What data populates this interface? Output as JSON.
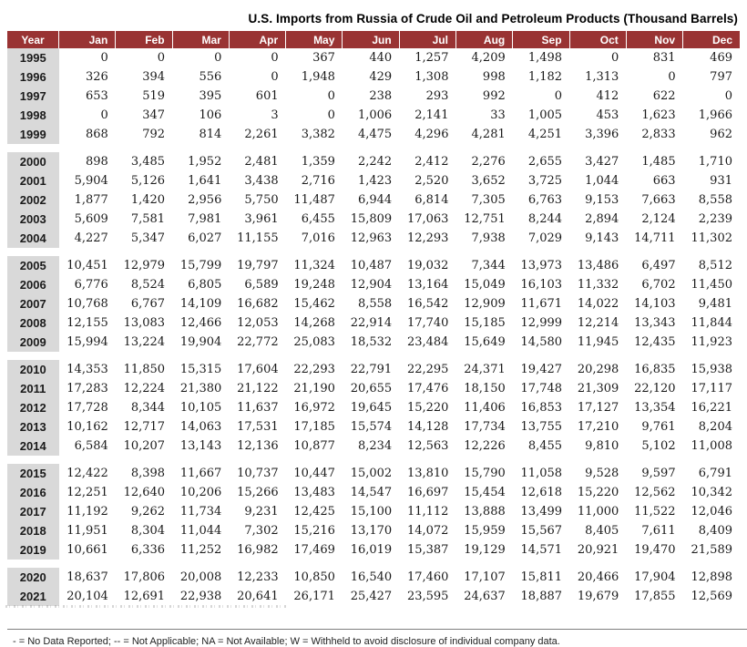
{
  "chart_data": {
    "type": "table",
    "title": "U.S. Imports from Russia of Crude Oil and Petroleum Products (Thousand Barrels)",
    "unit": "Thousand Barrels",
    "columns": [
      "Year",
      "Jan",
      "Feb",
      "Mar",
      "Apr",
      "May",
      "Jun",
      "Jul",
      "Aug",
      "Sep",
      "Oct",
      "Nov",
      "Dec"
    ],
    "row_groups": [
      {
        "rows": [
          {
            "year": "1995",
            "values": [
              "0",
              "0",
              "0",
              "0",
              "367",
              "440",
              "1,257",
              "4,209",
              "1,498",
              "0",
              "831",
              "469"
            ]
          },
          {
            "year": "1996",
            "values": [
              "326",
              "394",
              "556",
              "0",
              "1,948",
              "429",
              "1,308",
              "998",
              "1,182",
              "1,313",
              "0",
              "797"
            ]
          },
          {
            "year": "1997",
            "values": [
              "653",
              "519",
              "395",
              "601",
              "0",
              "238",
              "293",
              "992",
              "0",
              "412",
              "622",
              "0"
            ]
          },
          {
            "year": "1998",
            "values": [
              "0",
              "347",
              "106",
              "3",
              "0",
              "1,006",
              "2,141",
              "33",
              "1,005",
              "453",
              "1,623",
              "1,966"
            ]
          },
          {
            "year": "1999",
            "values": [
              "868",
              "792",
              "814",
              "2,261",
              "3,382",
              "4,475",
              "4,296",
              "4,281",
              "4,251",
              "3,396",
              "2,833",
              "962"
            ]
          }
        ]
      },
      {
        "rows": [
          {
            "year": "2000",
            "values": [
              "898",
              "3,485",
              "1,952",
              "2,481",
              "1,359",
              "2,242",
              "2,412",
              "2,276",
              "2,655",
              "3,427",
              "1,485",
              "1,710"
            ]
          },
          {
            "year": "2001",
            "values": [
              "5,904",
              "5,126",
              "1,641",
              "3,438",
              "2,716",
              "1,423",
              "2,520",
              "3,652",
              "3,725",
              "1,044",
              "663",
              "931"
            ]
          },
          {
            "year": "2002",
            "values": [
              "1,877",
              "1,420",
              "2,956",
              "5,750",
              "11,487",
              "6,944",
              "6,814",
              "7,305",
              "6,763",
              "9,153",
              "7,663",
              "8,558"
            ]
          },
          {
            "year": "2003",
            "values": [
              "5,609",
              "7,581",
              "7,981",
              "3,961",
              "6,455",
              "15,809",
              "17,063",
              "12,751",
              "8,244",
              "2,894",
              "2,124",
              "2,239"
            ]
          },
          {
            "year": "2004",
            "values": [
              "4,227",
              "5,347",
              "6,027",
              "11,155",
              "7,016",
              "12,963",
              "12,293",
              "7,938",
              "7,029",
              "9,143",
              "14,711",
              "11,302"
            ]
          }
        ]
      },
      {
        "rows": [
          {
            "year": "2005",
            "values": [
              "10,451",
              "12,979",
              "15,799",
              "19,797",
              "11,324",
              "10,487",
              "19,032",
              "7,344",
              "13,973",
              "13,486",
              "6,497",
              "8,512"
            ]
          },
          {
            "year": "2006",
            "values": [
              "6,776",
              "8,524",
              "6,805",
              "6,589",
              "19,248",
              "12,904",
              "13,164",
              "15,049",
              "16,103",
              "11,332",
              "6,702",
              "11,450"
            ]
          },
          {
            "year": "2007",
            "values": [
              "10,768",
              "6,767",
              "14,109",
              "16,682",
              "15,462",
              "8,558",
              "16,542",
              "12,909",
              "11,671",
              "14,022",
              "14,103",
              "9,481"
            ]
          },
          {
            "year": "2008",
            "values": [
              "12,155",
              "13,083",
              "12,466",
              "12,053",
              "14,268",
              "22,914",
              "17,740",
              "15,185",
              "12,999",
              "12,214",
              "13,343",
              "11,844"
            ]
          },
          {
            "year": "2009",
            "values": [
              "15,994",
              "13,224",
              "19,904",
              "22,772",
              "25,083",
              "18,532",
              "23,484",
              "15,649",
              "14,580",
              "11,945",
              "12,435",
              "11,923"
            ]
          }
        ]
      },
      {
        "rows": [
          {
            "year": "2010",
            "values": [
              "14,353",
              "11,850",
              "15,315",
              "17,604",
              "22,293",
              "22,791",
              "22,295",
              "24,371",
              "19,427",
              "20,298",
              "16,835",
              "15,938"
            ]
          },
          {
            "year": "2011",
            "values": [
              "17,283",
              "12,224",
              "21,380",
              "21,122",
              "21,190",
              "20,655",
              "17,476",
              "18,150",
              "17,748",
              "21,309",
              "22,120",
              "17,117"
            ]
          },
          {
            "year": "2012",
            "values": [
              "17,728",
              "8,344",
              "10,105",
              "11,637",
              "16,972",
              "19,645",
              "15,220",
              "11,406",
              "16,853",
              "17,127",
              "13,354",
              "16,221"
            ]
          },
          {
            "year": "2013",
            "values": [
              "10,162",
              "12,717",
              "14,063",
              "17,531",
              "17,185",
              "15,574",
              "14,128",
              "17,734",
              "13,755",
              "17,210",
              "9,761",
              "8,204"
            ]
          },
          {
            "year": "2014",
            "values": [
              "6,584",
              "10,207",
              "13,143",
              "12,136",
              "10,877",
              "8,234",
              "12,563",
              "12,226",
              "8,455",
              "9,810",
              "5,102",
              "11,008"
            ]
          }
        ]
      },
      {
        "rows": [
          {
            "year": "2015",
            "values": [
              "12,422",
              "8,398",
              "11,667",
              "10,737",
              "10,447",
              "15,002",
              "13,810",
              "15,790",
              "11,058",
              "9,528",
              "9,597",
              "6,791"
            ]
          },
          {
            "year": "2016",
            "values": [
              "12,251",
              "12,640",
              "10,206",
              "15,266",
              "13,483",
              "14,547",
              "16,697",
              "15,454",
              "12,618",
              "15,220",
              "12,562",
              "10,342"
            ]
          },
          {
            "year": "2017",
            "values": [
              "11,192",
              "9,262",
              "11,734",
              "9,231",
              "12,425",
              "15,100",
              "11,112",
              "13,888",
              "13,499",
              "11,000",
              "11,522",
              "12,046"
            ]
          },
          {
            "year": "2018",
            "values": [
              "11,951",
              "8,304",
              "11,044",
              "7,302",
              "15,216",
              "13,170",
              "14,072",
              "15,959",
              "15,567",
              "8,405",
              "7,611",
              "8,409"
            ]
          },
          {
            "year": "2019",
            "values": [
              "10,661",
              "6,336",
              "11,252",
              "16,982",
              "17,469",
              "16,019",
              "15,387",
              "19,129",
              "14,571",
              "20,921",
              "19,470",
              "21,589"
            ]
          }
        ]
      },
      {
        "rows": [
          {
            "year": "2020",
            "values": [
              "18,637",
              "17,806",
              "20,008",
              "12,233",
              "10,850",
              "16,540",
              "17,460",
              "17,107",
              "15,811",
              "20,466",
              "17,904",
              "12,898"
            ]
          },
          {
            "year": "2021",
            "values": [
              "20,104",
              "12,691",
              "22,938",
              "20,641",
              "26,171",
              "25,427",
              "23,595",
              "24,637",
              "18,887",
              "19,679",
              "17,855",
              "12,569"
            ]
          }
        ]
      }
    ]
  },
  "footer": {
    "legend": "- = No Data Reported;  -- = Not Applicable;  NA = Not Available;  W = Withheld to avoid disclosure of individual company data."
  },
  "colors": {
    "header_bg": "#993333",
    "header_text": "#ffffff",
    "year_column_bg": "#d9d9d9"
  }
}
